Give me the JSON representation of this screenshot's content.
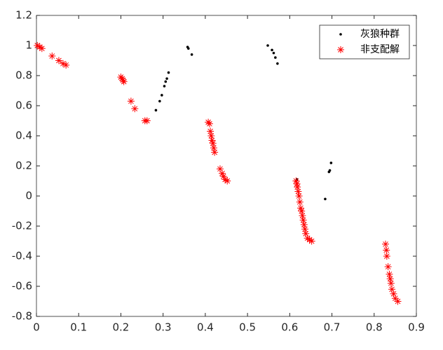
{
  "chart_data": {
    "type": "scatter",
    "xlim": [
      0,
      0.9
    ],
    "ylim": [
      -0.8,
      1.2
    ],
    "xticks": [
      0,
      0.1,
      0.2,
      0.3,
      0.4,
      0.5,
      0.6,
      0.7,
      0.8,
      0.9
    ],
    "yticks": [
      -0.8,
      -0.6,
      -0.4,
      -0.2,
      0,
      0.2,
      0.4,
      0.6,
      0.8,
      1,
      1.2
    ],
    "legend": "upper right",
    "series": [
      {
        "name": "灰狼种群",
        "color": "#000000",
        "marker": "dot",
        "x": [
          0.283,
          0.292,
          0.297,
          0.303,
          0.306,
          0.309,
          0.313,
          0.358,
          0.36,
          0.368,
          0.548,
          0.558,
          0.562,
          0.566,
          0.571,
          0.617,
          0.684,
          0.693,
          0.695,
          0.698
        ],
        "values": [
          0.57,
          0.63,
          0.67,
          0.73,
          0.76,
          0.78,
          0.82,
          0.99,
          0.98,
          0.94,
          1.0,
          0.97,
          0.95,
          0.92,
          0.88,
          0.11,
          -0.02,
          0.16,
          0.17,
          0.22
        ]
      },
      {
        "name": "非支配解",
        "color": "#ff0000",
        "marker": "star",
        "x": [
          0.002,
          0.008,
          0.013,
          0.037,
          0.053,
          0.063,
          0.07,
          0.2,
          0.203,
          0.205,
          0.207,
          0.224,
          0.233,
          0.257,
          0.262,
          0.407,
          0.41,
          0.412,
          0.414,
          0.416,
          0.418,
          0.42,
          0.422,
          0.435,
          0.44,
          0.443,
          0.447,
          0.452,
          0.615,
          0.617,
          0.618,
          0.62,
          0.622,
          0.624,
          0.626,
          0.628,
          0.63,
          0.632,
          0.634,
          0.636,
          0.638,
          0.642,
          0.647,
          0.652,
          0.827,
          0.829,
          0.83,
          0.833,
          0.836,
          0.838,
          0.84,
          0.842,
          0.846,
          0.85,
          0.856
        ],
        "values": [
          1.0,
          0.99,
          0.98,
          0.93,
          0.9,
          0.88,
          0.87,
          0.79,
          0.78,
          0.77,
          0.76,
          0.63,
          0.58,
          0.5,
          0.5,
          0.49,
          0.48,
          0.43,
          0.4,
          0.37,
          0.35,
          0.32,
          0.29,
          0.18,
          0.15,
          0.13,
          0.11,
          0.1,
          0.1,
          0.08,
          0.06,
          0.03,
          0.0,
          -0.04,
          -0.08,
          -0.1,
          -0.13,
          -0.16,
          -0.19,
          -0.22,
          -0.25,
          -0.28,
          -0.29,
          -0.3,
          -0.32,
          -0.36,
          -0.4,
          -0.47,
          -0.52,
          -0.55,
          -0.58,
          -0.62,
          -0.65,
          -0.68,
          -0.7
        ]
      }
    ]
  }
}
